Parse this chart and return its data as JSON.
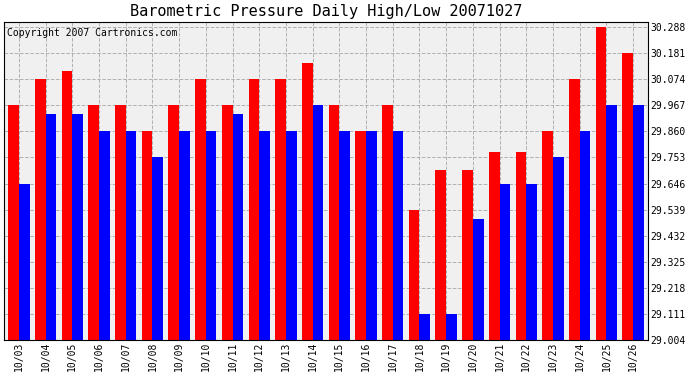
{
  "title": "Barometric Pressure Daily High/Low 20071027",
  "copyright": "Copyright 2007 Cartronics.com",
  "dates": [
    "10/03",
    "10/04",
    "10/05",
    "10/06",
    "10/07",
    "10/08",
    "10/09",
    "10/10",
    "10/11",
    "10/12",
    "10/13",
    "10/14",
    "10/15",
    "10/16",
    "10/17",
    "10/18",
    "10/19",
    "10/20",
    "10/21",
    "10/22",
    "10/23",
    "10/24",
    "10/25",
    "10/26"
  ],
  "highs": [
    29.967,
    30.074,
    30.107,
    29.967,
    29.967,
    29.86,
    29.967,
    30.074,
    29.967,
    30.074,
    30.074,
    30.14,
    29.967,
    29.86,
    29.967,
    29.539,
    29.7,
    29.7,
    29.775,
    29.775,
    29.86,
    30.074,
    30.288,
    30.181
  ],
  "lows": [
    29.646,
    29.93,
    29.93,
    29.86,
    29.86,
    29.753,
    29.86,
    29.86,
    29.93,
    29.86,
    29.86,
    29.967,
    29.86,
    29.86,
    29.86,
    29.111,
    29.111,
    29.5,
    29.646,
    29.646,
    29.753,
    29.86,
    29.967,
    29.967
  ],
  "ylim_min": 29.004,
  "ylim_max": 30.31,
  "yticks": [
    29.004,
    29.111,
    29.218,
    29.325,
    29.432,
    29.539,
    29.646,
    29.753,
    29.86,
    29.967,
    30.074,
    30.181,
    30.288
  ],
  "high_color": "#FF0000",
  "low_color": "#0000FF",
  "bg_color": "#FFFFFF",
  "plot_bg_color": "#F0F0F0",
  "grid_color": "#AAAAAA",
  "title_fontsize": 11,
  "copyright_fontsize": 7
}
